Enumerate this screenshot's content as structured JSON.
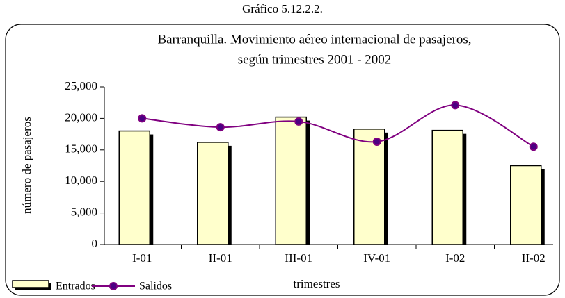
{
  "chart_data": {
    "type": "bar-line",
    "caption": "Gráfico 5.12.2.2.",
    "title": "Barranquilla. Movimiento aéreo internacional de pasajeros,",
    "subtitle": "según trimestres 2001 - 2002",
    "y_label": "número de pasajeros",
    "x_label": "trimestres",
    "categories": [
      "I-01",
      "II-01",
      "III-01",
      "IV-01",
      "I-02",
      "II-02"
    ],
    "series": [
      {
        "name": "Entrados",
        "type": "bar",
        "color": "#ffffcc",
        "values": [
          18000,
          16200,
          20200,
          18300,
          18100,
          12500
        ]
      },
      {
        "name": "Salidos",
        "type": "line",
        "color": "#800080",
        "values": [
          20000,
          18600,
          19500,
          16300,
          22100,
          15500
        ]
      }
    ],
    "ylim": [
      0,
      25000
    ],
    "yticks": [
      0,
      {
        "value": 5000,
        "label": "5,000"
      },
      {
        "value": 10000,
        "label": "10,000"
      },
      {
        "value": 15000,
        "label": "15,000"
      },
      {
        "value": 20000,
        "label": "20,000"
      },
      {
        "value": 25000,
        "label": "25,000"
      }
    ],
    "grid": false,
    "legend": "bottom-left"
  }
}
